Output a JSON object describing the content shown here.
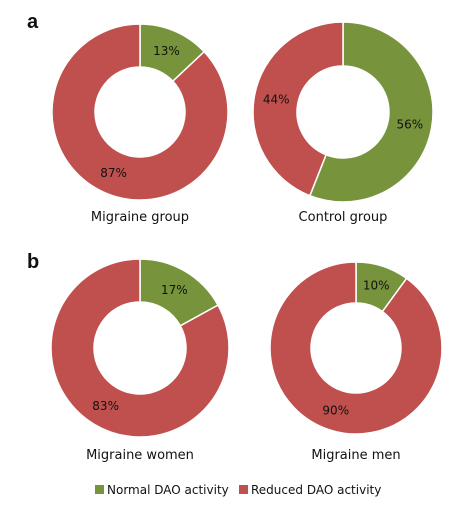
{
  "figure": {
    "panels": [
      {
        "letter": "a"
      },
      {
        "letter": "b"
      }
    ]
  },
  "chart_data": [
    {
      "type": "pie",
      "donut": true,
      "panel": "a",
      "caption": "Migraine group",
      "slices": [
        {
          "label": "Normal DAO activity",
          "value": 13,
          "text": "13%"
        },
        {
          "label": "Reduced DAO activity",
          "value": 87,
          "text": "87%"
        }
      ]
    },
    {
      "type": "pie",
      "donut": true,
      "panel": "a",
      "caption": "Control group",
      "slices": [
        {
          "label": "Normal DAO activity",
          "value": 56,
          "text": "56%"
        },
        {
          "label": "Reduced DAO activity",
          "value": 44,
          "text": "44%"
        }
      ]
    },
    {
      "type": "pie",
      "donut": true,
      "panel": "b",
      "caption": "Migraine women",
      "slices": [
        {
          "label": "Normal DAO activity",
          "value": 17,
          "text": "17%"
        },
        {
          "label": "Reduced DAO activity",
          "value": 83,
          "text": "83%"
        }
      ]
    },
    {
      "type": "pie",
      "donut": true,
      "panel": "b",
      "caption": "Migraine men",
      "slices": [
        {
          "label": "Normal DAO activity",
          "value": 10,
          "text": "10%"
        },
        {
          "label": "Reduced DAO activity",
          "value": 90,
          "text": "90%"
        }
      ]
    }
  ],
  "legend": {
    "placement": "bottom-center",
    "items": [
      {
        "label": "Normal DAO activity",
        "color": "#77933c"
      },
      {
        "label": "Reduced DAO activity",
        "color": "#c0504d"
      }
    ]
  }
}
